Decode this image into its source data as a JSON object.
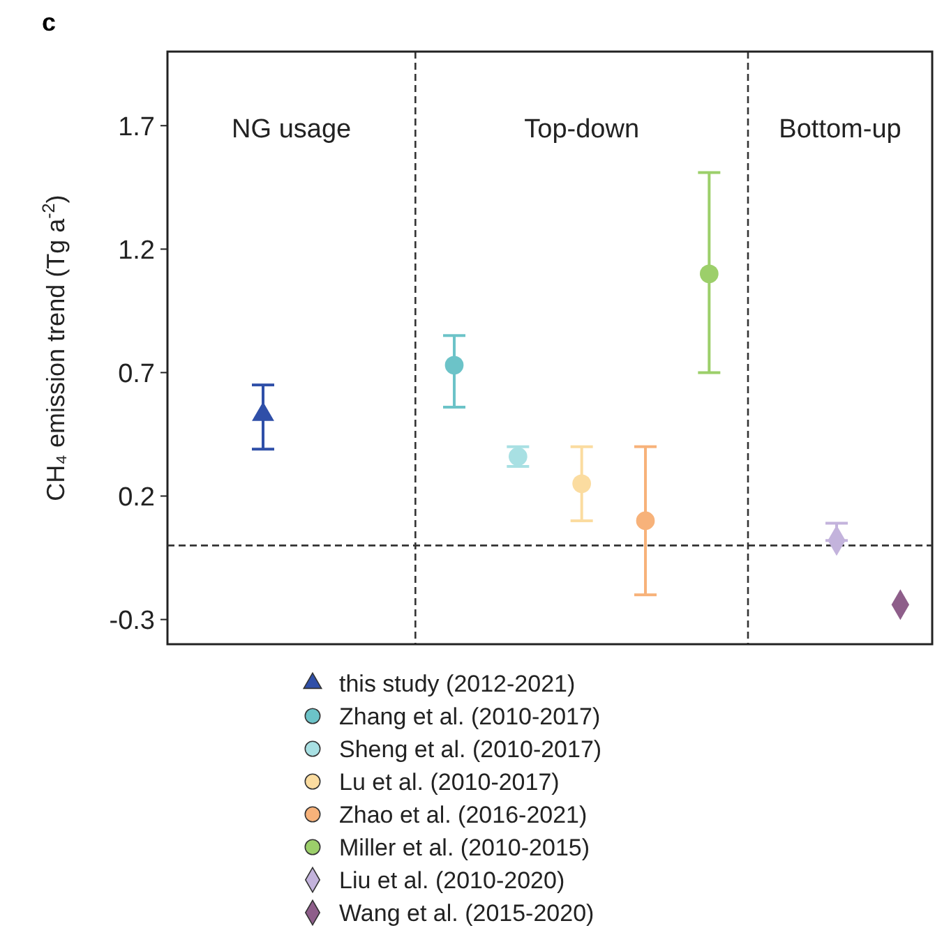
{
  "chart_data": {
    "type": "scatter",
    "title": "c",
    "ylabel": "CH₄ emission trend (Tg a$^{-2}$)",
    "categories": [
      null,
      null,
      null,
      null,
      null,
      null,
      null,
      null,
      null,
      null,
      null,
      null
    ],
    "ylim": [
      -0.4,
      2.0
    ],
    "yticks": [
      -0.3,
      0.2,
      0.7,
      1.2,
      1.7
    ],
    "grid": false,
    "legend": "bottom",
    "series": [
      {
        "name": "this study (2012-2021)",
        "color": "#2f4fa8",
        "marker": "triangle",
        "values": [
          null,
          0.53,
          null,
          null,
          null,
          null,
          null,
          null,
          null,
          null,
          null,
          null
        ],
        "errors": [
          null,
          [
            0.39,
            0.65
          ],
          null,
          null,
          null,
          null,
          null,
          null,
          null,
          null,
          null,
          null
        ]
      },
      {
        "name": "Zhang et al. (2010-2017)",
        "color": "#6cc3c8",
        "marker": "circle",
        "values": [
          null,
          null,
          null,
          null,
          0.73,
          null,
          null,
          null,
          null,
          null,
          null,
          null
        ],
        "errors": [
          null,
          null,
          null,
          null,
          [
            0.56,
            0.85
          ],
          null,
          null,
          null,
          null,
          null,
          null,
          null
        ]
      },
      {
        "name": "Sheng et al. (2010-2017)",
        "color": "#a8e0e3",
        "marker": "circle",
        "values": [
          null,
          null,
          null,
          null,
          null,
          0.36,
          null,
          null,
          null,
          null,
          null,
          null
        ],
        "errors": [
          null,
          null,
          null,
          null,
          null,
          [
            0.32,
            0.4
          ],
          null,
          null,
          null,
          null,
          null,
          null
        ]
      },
      {
        "name": "Lu et al. (2010-2017)",
        "color": "#fbdca0",
        "marker": "circle",
        "values": [
          null,
          null,
          null,
          null,
          null,
          null,
          0.25,
          null,
          null,
          null,
          null,
          null
        ],
        "errors": [
          null,
          null,
          null,
          null,
          null,
          null,
          [
            0.1,
            0.4
          ],
          null,
          null,
          null,
          null,
          null
        ]
      },
      {
        "name": "Zhao et al. (2016-2021)",
        "color": "#f7b27a",
        "marker": "circle",
        "values": [
          null,
          null,
          null,
          null,
          null,
          null,
          null,
          0.1,
          null,
          null,
          null,
          null
        ],
        "errors": [
          null,
          null,
          null,
          null,
          null,
          null,
          null,
          [
            -0.2,
            0.4
          ],
          null,
          null,
          null,
          null
        ]
      },
      {
        "name": "Miller et al. (2010-2015)",
        "color": "#9ccf6a",
        "marker": "circle",
        "values": [
          null,
          null,
          null,
          null,
          null,
          null,
          null,
          null,
          1.1,
          null,
          null,
          null
        ],
        "errors": [
          null,
          null,
          null,
          null,
          null,
          null,
          null,
          null,
          [
            0.7,
            1.51
          ],
          null,
          null,
          null
        ]
      },
      {
        "name": "Liu et al. (2010-2020)",
        "color": "#c3b3dc",
        "marker": "diamond",
        "values": [
          null,
          null,
          null,
          null,
          null,
          null,
          null,
          null,
          null,
          null,
          0.02,
          null
        ],
        "errors": [
          null,
          null,
          null,
          null,
          null,
          null,
          null,
          null,
          null,
          null,
          [
            0.02,
            0.09
          ],
          null
        ]
      },
      {
        "name": "Wang et al. (2015-2020)",
        "color": "#8e5e8a",
        "marker": "diamond",
        "values": [
          null,
          null,
          null,
          null,
          null,
          null,
          null,
          null,
          null,
          null,
          null,
          -0.24
        ]
      }
    ],
    "ref_lines": [
      {
        "axis": "y",
        "value": 0,
        "line_style": "dashed"
      }
    ],
    "annotations": [
      "NG usage",
      "Top-down",
      "Bottom-up"
    ]
  }
}
